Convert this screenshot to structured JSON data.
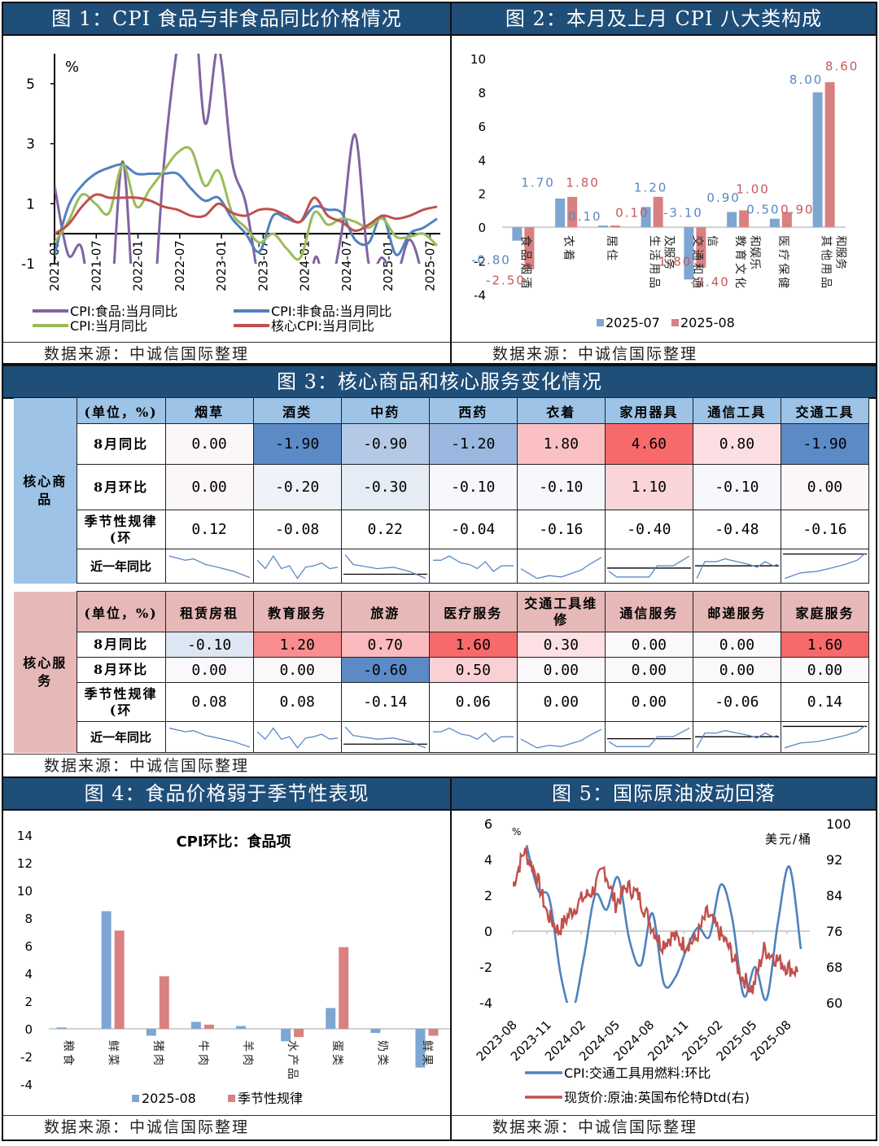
{
  "fig1": {
    "title": "图 1：CPI 食品与非食品同比价格情况",
    "source": "数据来源：中诚信国际整理",
    "chart_data": {
      "type": "line",
      "title": "CPI 食品与非食品同比价格情况",
      "ylabel": "%",
      "ylim": [
        -1,
        6
      ],
      "yticks": [
        "5",
        "3",
        "1",
        "-1"
      ],
      "xticks": [
        "2021-01",
        "2021-07",
        "2022-01",
        "2022-07",
        "2023-01",
        "2023-07",
        "2024-01",
        "2024-07",
        "2025-01",
        "2025-07"
      ],
      "legend": [
        "CPI:食品:当月同比",
        "CPI:非食品:当月同比",
        "CPI:当月同比",
        "核心CPI:当月同比"
      ],
      "x": [
        "2021-01",
        "2021-03",
        "2021-05",
        "2021-07",
        "2021-09",
        "2021-11",
        "2022-01",
        "2022-03",
        "2022-05",
        "2022-07",
        "2022-09",
        "2022-11",
        "2023-01",
        "2023-03",
        "2023-05",
        "2023-07",
        "2023-09",
        "2023-11",
        "2024-01",
        "2024-03",
        "2024-05",
        "2024-07",
        "2024-09",
        "2024-11",
        "2025-01",
        "2025-03",
        "2025-05",
        "2025-07",
        "2025-08"
      ],
      "series": [
        {
          "name": "CPI:食品:当月同比",
          "color": "#8064a2",
          "values": [
            1.6,
            -0.7,
            -0.5,
            -3.7,
            -3.2,
            2.4,
            -3.8,
            -3.9,
            2.3,
            6.3,
            8.8,
            3.7,
            6.2,
            2.4,
            1.0,
            -1.7,
            -3.2,
            -4.2,
            -5.9,
            -0.9,
            -2.0,
            0.0,
            3.3,
            -1.0,
            -0.8,
            -1.4,
            -0.2,
            -1.6,
            -4.3
          ]
        },
        {
          "name": "CPI:非食品:当月同比",
          "color": "#4f81bd",
          "values": [
            -0.7,
            0.9,
            1.6,
            2.0,
            2.2,
            2.3,
            2.0,
            2.0,
            2.0,
            2.0,
            1.5,
            1.1,
            1.2,
            0.5,
            0.0,
            -0.6,
            0.6,
            0.5,
            0.4,
            0.9,
            0.8,
            0.7,
            -0.2,
            -0.3,
            0.6,
            -0.7,
            0.0,
            0.2,
            0.5
          ]
        },
        {
          "name": "CPI:当月同比",
          "color": "#9bbb59",
          "values": [
            -0.3,
            0.4,
            1.3,
            1.0,
            0.7,
            2.3,
            0.9,
            1.5,
            2.1,
            2.7,
            2.8,
            1.6,
            2.1,
            0.7,
            0.2,
            -0.3,
            0.0,
            -0.5,
            -0.8,
            0.7,
            0.3,
            0.5,
            0.4,
            0.2,
            0.5,
            -0.1,
            -0.1,
            0.0,
            -0.4
          ]
        },
        {
          "name": "核心CPI:当月同比",
          "color": "#c0504d",
          "values": [
            0.0,
            0.3,
            0.9,
            1.3,
            1.2,
            1.2,
            1.2,
            1.1,
            0.9,
            0.8,
            0.6,
            0.6,
            1.0,
            0.7,
            0.6,
            0.8,
            0.8,
            0.6,
            0.4,
            1.2,
            0.6,
            0.4,
            0.1,
            0.3,
            0.6,
            0.5,
            0.6,
            0.8,
            0.9
          ]
        }
      ]
    }
  },
  "fig2": {
    "title": "图 2：本月及上月 CPI 八大类构成",
    "source": "数据来源：中诚信国际整理",
    "chart_data": {
      "type": "bar",
      "title": "本月及上月 CPI 八大类构成",
      "ylim": [
        -4,
        10
      ],
      "yticks": [
        "10",
        "8",
        "6",
        "4",
        "2",
        "0",
        "-2",
        "-4"
      ],
      "categories": [
        "食品烟酒",
        "衣着",
        "居住",
        "生活用品及服务",
        "交通和通信",
        "教育文化和娱乐",
        "医疗保健",
        "其他用品和服务"
      ],
      "series": [
        {
          "name": "2025-07",
          "color": "#7ea6d3",
          "values": [
            -0.8,
            1.7,
            0.1,
            1.2,
            -3.1,
            0.9,
            0.5,
            8.0
          ],
          "labels": [
            "-0.80",
            "1.70",
            "0.10",
            "1.20",
            "-3.10",
            "0.90",
            "0.50",
            "8.00"
          ]
        },
        {
          "name": "2025-08",
          "color": "#d98080",
          "values": [
            -2.5,
            1.8,
            0.1,
            1.8,
            -2.4,
            1.0,
            0.9,
            8.6
          ],
          "labels": [
            "-2.50",
            "1.80",
            "0.10",
            "1.80",
            "-2.40",
            "1.00",
            "0.90",
            "8.60"
          ]
        }
      ],
      "legend": [
        "2025-07",
        "2025-08"
      ]
    }
  },
  "fig3": {
    "title": "图 3：核心商品和核心服务变化情况",
    "source": "数据来源：中诚信国际整理",
    "unit_label": "(单位，%)",
    "goods": {
      "group_label": "核心商品",
      "columns": [
        "烟草",
        "酒类",
        "中药",
        "西药",
        "衣着",
        "家用器具",
        "通信工具",
        "交通工具"
      ],
      "rows": [
        {
          "label": "8月同比",
          "values": [
            "0.00",
            "-1.90",
            "-0.90",
            "-1.20",
            "1.80",
            "4.60",
            "0.80",
            "-1.90"
          ],
          "colors": [
            "#fbf6f8",
            "#5b8ac7",
            "#b3c9e6",
            "#9ab8df",
            "#fbc0c4",
            "#f8696b",
            "#fcdfe2",
            "#5b8ac7"
          ]
        },
        {
          "label": "8月环比",
          "values": [
            "0.00",
            "-0.20",
            "-0.30",
            "-0.10",
            "-0.10",
            "1.10",
            "-0.10",
            "0.00"
          ],
          "colors": [
            "#fbf6f8",
            "#eef2f9",
            "#e5ecf6",
            "#f6f8fc",
            "#f6f8fc",
            "#f9d5d9",
            "#f6f8fc",
            "#fbf6f8"
          ]
        },
        {
          "label": "季节性规律(环",
          "values": [
            "0.12",
            "-0.08",
            "0.22",
            "-0.04",
            "-0.16",
            "-0.40",
            "-0.48",
            "-0.16"
          ]
        },
        {
          "label": "近一年同比"
        }
      ]
    },
    "services": {
      "group_label": "核心服务",
      "columns": [
        "租赁房租",
        "教育服务",
        "旅游",
        "医疗服务",
        "交通工具维修",
        "通信服务",
        "邮递服务",
        "家庭服务"
      ],
      "rows": [
        {
          "label": "8月同比",
          "values": [
            "-0.10",
            "1.20",
            "0.70",
            "1.60",
            "0.30",
            "0.00",
            "0.00",
            "1.60"
          ],
          "colors": [
            "#dde6f3",
            "#f98d8f",
            "#fbbabd",
            "#f8696b",
            "#fce0e3",
            "#fbf8fb",
            "#fbf8fb",
            "#f8696b"
          ]
        },
        {
          "label": "8月环比",
          "values": [
            "0.00",
            "0.00",
            "-0.60",
            "0.50",
            "0.00",
            "0.00",
            "0.00",
            "0.00"
          ],
          "colors": [
            "#fbf8fb",
            "#fbf8fb",
            "#5b8ac7",
            "#fad0d4",
            "#fbf8fb",
            "#fbf8fb",
            "#fbf8fb",
            "#fbf8fb"
          ]
        },
        {
          "label": "季节性规律(环",
          "values": [
            "0.08",
            "0.08",
            "-0.14",
            "0.06",
            "0.00",
            "0.00",
            "-0.06",
            "0.14"
          ]
        },
        {
          "label": "近一年同比"
        }
      ]
    }
  },
  "fig4": {
    "title": "图 4：食品价格弱于季节性表现",
    "source": "数据来源：中诚信国际整理",
    "chart_data": {
      "type": "bar",
      "title": "CPI环比：食品项",
      "ylim": [
        -4,
        14
      ],
      "yticks": [
        "14",
        "12",
        "10",
        "8",
        "6",
        "4",
        "2",
        "0",
        "-2",
        "-4"
      ],
      "categories": [
        "粮食",
        "鲜菜",
        "猪肉",
        "牛肉",
        "羊肉",
        "水产品",
        "蛋类",
        "奶类",
        "鲜果"
      ],
      "series": [
        {
          "name": "2025-08",
          "color": "#7ea6d3",
          "values": [
            0.1,
            8.5,
            -0.5,
            0.5,
            0.2,
            -0.9,
            1.5,
            -0.3,
            -2.8
          ]
        },
        {
          "name": "季节性规律",
          "color": "#d98080",
          "values": [
            0.0,
            7.1,
            3.8,
            0.3,
            0.0,
            -0.6,
            5.9,
            0.0,
            -0.5
          ]
        }
      ],
      "legend": [
        "2025-08",
        "季节性规律"
      ]
    }
  },
  "fig5": {
    "title": "图 5：国际原油波动回落",
    "source": "数据来源：中诚信国际整理",
    "chart_data": {
      "type": "line",
      "title": "国际原油波动回落",
      "ylabel_left": "%",
      "ylabel_right": "美元/桶",
      "ylim_left": [
        -4,
        6
      ],
      "ylim_right": [
        60,
        100
      ],
      "yticks_left": [
        "6",
        "4",
        "2",
        "0",
        "-2",
        "-4"
      ],
      "yticks_right": [
        "100",
        "92",
        "84",
        "76",
        "68",
        "60"
      ],
      "xticks": [
        "2023-08",
        "2023-11",
        "2024-02",
        "2024-05",
        "2024-08",
        "2024-11",
        "2025-02",
        "2025-05",
        "2025-08"
      ],
      "legend": [
        "CPI:交通工具用燃料:环比",
        "现货价:原油:英国布伦特Dtd(右)"
      ],
      "series": [
        {
          "name": "CPI:交通工具用燃料:环比",
          "axis": "left",
          "color": "#4f81bd",
          "x": [
            "2023-09",
            "2023-10",
            "2023-11",
            "2023-12",
            "2024-01",
            "2024-02",
            "2024-03",
            "2024-04",
            "2024-05",
            "2024-06",
            "2024-07",
            "2024-08",
            "2024-09",
            "2024-10",
            "2024-11",
            "2024-12",
            "2025-01",
            "2025-02",
            "2025-03",
            "2025-04",
            "2025-05",
            "2025-06",
            "2025-07",
            "2025-08",
            "2025-09"
          ],
          "values": [
            4.8,
            2.3,
            1.8,
            -2.5,
            -4.4,
            -1.5,
            2.0,
            1.2,
            3.0,
            -0.5,
            -1.9,
            1.0,
            -2.9,
            -2.6,
            -1.0,
            0.2,
            -0.3,
            2.6,
            0.7,
            -3.6,
            -2.0,
            -3.8,
            0.5,
            3.6,
            -1.0
          ]
        },
        {
          "name": "现货价:原油:英国布伦特Dtd(右)",
          "axis": "right",
          "color": "#c0504d",
          "x": [
            "2023-08",
            "2023-09",
            "2023-10",
            "2023-11",
            "2023-12",
            "2024-01",
            "2024-02",
            "2024-03",
            "2024-04",
            "2024-05",
            "2024-06",
            "2024-07",
            "2024-08",
            "2024-09",
            "2024-10",
            "2024-11",
            "2024-12",
            "2025-01",
            "2025-02",
            "2025-03",
            "2025-04",
            "2025-05",
            "2025-06",
            "2025-07",
            "2025-08",
            "2025-09"
          ],
          "values": [
            86,
            94,
            89,
            80,
            76,
            80,
            83,
            85,
            90,
            82,
            86,
            84,
            78,
            73,
            75,
            73,
            74,
            80,
            76,
            72,
            66,
            63,
            72,
            70,
            68,
            67
          ]
        }
      ]
    }
  }
}
